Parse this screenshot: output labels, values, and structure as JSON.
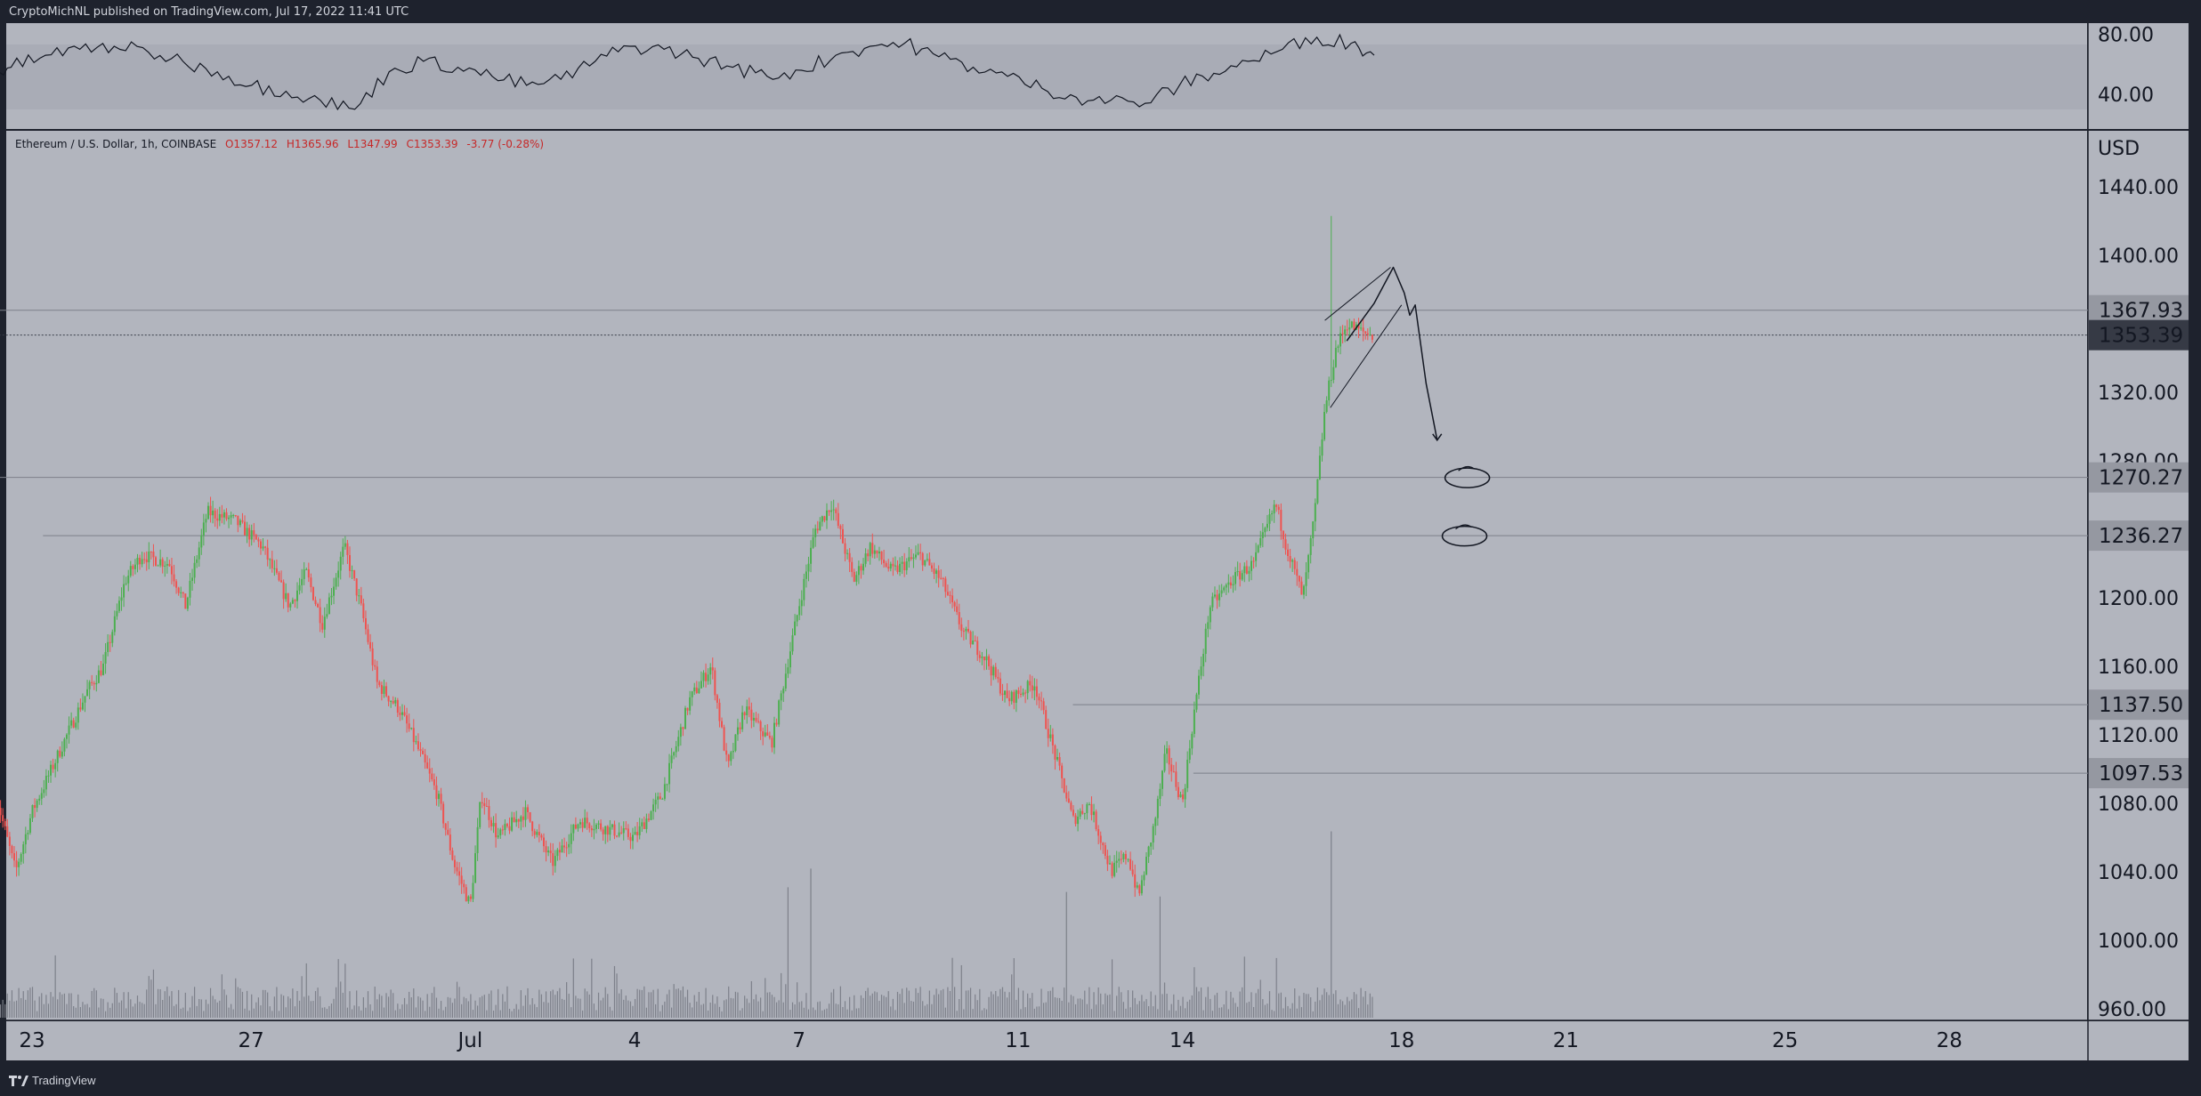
{
  "header": {
    "published_text": "CryptoMichNL published on TradingView.com, Jul 17, 2022 11:41 UTC"
  },
  "footer": {
    "brand": "TradingView"
  },
  "legend": {
    "symbol": "Ethereum / U.S. Dollar, 1h, COINBASE",
    "open": "O1357.12",
    "high": "H1365.96",
    "low": "L1347.99",
    "close": "C1353.39",
    "change": "-3.77 (-0.28%)"
  },
  "colors": {
    "background": "#b2b5be",
    "frame": "#1e222d",
    "up": "#4caf50",
    "down": "#ef5350",
    "volume": "#7d808a",
    "text": "#131722",
    "legend_red": "#c62828",
    "price_tag": "#363a45"
  },
  "icons": [
    "tradingview-logo-icon"
  ],
  "chart_data": [
    {
      "type": "line",
      "name": "RSI",
      "ylim": [
        28,
        88
      ],
      "y_ticks": [
        "80.00",
        "40.00"
      ],
      "band": [
        30,
        70
      ],
      "x": [
        0,
        2,
        5,
        8,
        11,
        14,
        17,
        20,
        23,
        26,
        29,
        32,
        35,
        38,
        41,
        44,
        47,
        50,
        53,
        56,
        59,
        62,
        65,
        68,
        71,
        74,
        77,
        80,
        83,
        86,
        89,
        92,
        95,
        98,
        101,
        104,
        107,
        110,
        113,
        116,
        119,
        121
      ],
      "values": [
        50,
        58,
        66,
        70,
        72,
        68,
        62,
        55,
        46,
        42,
        36,
        30,
        55,
        62,
        58,
        52,
        46,
        50,
        62,
        72,
        70,
        64,
        58,
        52,
        56,
        66,
        72,
        74,
        65,
        58,
        52,
        44,
        38,
        36,
        34,
        46,
        54,
        62,
        70,
        78,
        74,
        66
      ]
    },
    {
      "type": "candlestick",
      "title": "Ethereum / U.S. Dollar, 1h, COINBASE",
      "ylabel": "USD",
      "ylim": [
        952,
        1478
      ],
      "y_ticks": [
        "1440.00",
        "1400.00",
        "1320.00",
        "1280.00",
        "1200.00",
        "1160.00",
        "1120.00",
        "1080.00",
        "1040.00",
        "1000.00",
        "960.00"
      ],
      "x_ticks": [
        {
          "day": -7,
          "label": "23"
        },
        {
          "day": -3,
          "label": "27"
        },
        {
          "day": 1,
          "label": "Jul"
        },
        {
          "day": 4,
          "label": "4"
        },
        {
          "day": 7,
          "label": "7"
        },
        {
          "day": 11,
          "label": "11"
        },
        {
          "day": 14,
          "label": "14"
        },
        {
          "day": 18,
          "label": "18"
        },
        {
          "day": 21,
          "label": "21"
        },
        {
          "day": 25,
          "label": "25"
        },
        {
          "day": 28,
          "label": "28"
        }
      ],
      "price_path": [
        [
          -7.7,
          1090
        ],
        [
          -7.3,
          1040
        ],
        [
          -7.0,
          1075
        ],
        [
          -6.5,
          1110
        ],
        [
          -6.0,
          1145
        ],
        [
          -5.7,
          1160
        ],
        [
          -5.3,
          1210
        ],
        [
          -5.0,
          1225
        ],
        [
          -4.5,
          1220
        ],
        [
          -4.2,
          1195
        ],
        [
          -3.8,
          1250
        ],
        [
          -3.3,
          1245
        ],
        [
          -2.8,
          1230
        ],
        [
          -2.3,
          1195
        ],
        [
          -2.0,
          1215
        ],
        [
          -1.7,
          1185
        ],
        [
          -1.3,
          1230
        ],
        [
          -1.0,
          1195
        ],
        [
          -0.7,
          1150
        ],
        [
          -0.3,
          1135
        ],
        [
          0.0,
          1115
        ],
        [
          0.4,
          1085
        ],
        [
          0.7,
          1045
        ],
        [
          1.0,
          1020
        ],
        [
          1.2,
          1085
        ],
        [
          1.5,
          1060
        ],
        [
          2.0,
          1075
        ],
        [
          2.5,
          1045
        ],
        [
          3.0,
          1070
        ],
        [
          3.5,
          1065
        ],
        [
          4.0,
          1060
        ],
        [
          4.5,
          1085
        ],
        [
          5.0,
          1140
        ],
        [
          5.4,
          1160
        ],
        [
          5.7,
          1100
        ],
        [
          6.0,
          1135
        ],
        [
          6.5,
          1115
        ],
        [
          7.0,
          1195
        ],
        [
          7.3,
          1240
        ],
        [
          7.6,
          1255
        ],
        [
          8.0,
          1210
        ],
        [
          8.3,
          1230
        ],
        [
          8.7,
          1215
        ],
        [
          9.2,
          1225
        ],
        [
          9.6,
          1210
        ],
        [
          10.0,
          1180
        ],
        [
          10.4,
          1165
        ],
        [
          10.8,
          1140
        ],
        [
          11.3,
          1150
        ],
        [
          11.7,
          1105
        ],
        [
          12.0,
          1070
        ],
        [
          12.3,
          1080
        ],
        [
          12.7,
          1040
        ],
        [
          13.0,
          1050
        ],
        [
          13.2,
          1025
        ],
        [
          13.5,
          1070
        ],
        [
          13.7,
          1110
        ],
        [
          14.0,
          1080
        ],
        [
          14.2,
          1130
        ],
        [
          14.5,
          1195
        ],
        [
          14.9,
          1210
        ],
        [
          15.3,
          1220
        ],
        [
          15.7,
          1255
        ],
        [
          15.9,
          1230
        ],
        [
          16.2,
          1200
        ],
        [
          16.4,
          1245
        ],
        [
          16.6,
          1310
        ],
        [
          16.8,
          1345
        ],
        [
          17.0,
          1360
        ],
        [
          17.3,
          1355
        ],
        [
          17.5,
          1353
        ]
      ],
      "spike": {
        "day": 16.7,
        "high": 1423
      },
      "levels": [
        {
          "value": 1367.93,
          "label": "1367.93",
          "from_day": -7.8
        },
        {
          "value": 1353.39,
          "label": "1353.39",
          "from_day": -7.8,
          "current": true
        },
        {
          "value": 1270.27,
          "label": "1270.27",
          "from_day": -7.8
        },
        {
          "value": 1236.27,
          "label": "1236.27",
          "from_day": -6.8
        },
        {
          "value": 1137.5,
          "label": "1137.50",
          "from_day": 12.0
        },
        {
          "value": 1097.53,
          "label": "1097.53",
          "from_day": 14.2
        }
      ],
      "volume": {
        "ylim": [
          0,
          420
        ],
        "typical": 45,
        "spikes": [
          [
            6.8,
            280
          ],
          [
            7.2,
            320
          ],
          [
            11.9,
            270
          ],
          [
            13.6,
            260
          ],
          [
            16.7,
            400
          ]
        ]
      },
      "annotations": {
        "channel": [
          [
            [
              16.6,
              1362
            ],
            [
              17.8,
              1393
            ]
          ],
          [
            [
              16.7,
              1311
            ],
            [
              18.0,
              1371
            ]
          ]
        ],
        "projection": [
          [
            17.0,
            1350
          ],
          [
            17.5,
            1372
          ],
          [
            17.85,
            1393
          ],
          [
            18.05,
            1378
          ],
          [
            18.15,
            1365
          ],
          [
            18.25,
            1371
          ],
          [
            18.45,
            1325
          ],
          [
            18.65,
            1292
          ]
        ],
        "circles": [
          [
            19.2,
            1270
          ],
          [
            19.15,
            1236
          ]
        ]
      }
    }
  ]
}
